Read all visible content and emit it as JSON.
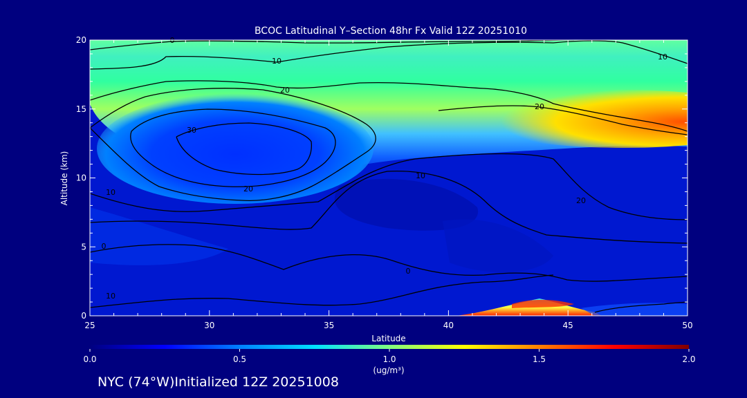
{
  "chart_data": {
    "type": "heatmap",
    "title": "BCOC Latitudinal Y–Section 48hr  Fx Valid 12Z 20251010",
    "xlabel": "Latitude",
    "ylabel": "Altitude (km)",
    "x_ticks": [
      "25",
      "30",
      "35",
      "40",
      "45",
      "50"
    ],
    "y_ticks": [
      "0",
      "5",
      "10",
      "15",
      "20"
    ],
    "xlim": [
      25,
      50
    ],
    "ylim": [
      0,
      20
    ],
    "colorbar": {
      "range": [
        0.0,
        2.0
      ],
      "tick_labels": [
        "0.0",
        "0.5",
        "1.0",
        "1.5",
        "2.0"
      ],
      "units": "(ug/m³)",
      "colors": [
        "#00007f",
        "#0000ff",
        "#0080ff",
        "#00e0ff",
        "#80ff80",
        "#ffff00",
        "#ff8000",
        "#ff0000",
        "#7f0000"
      ]
    },
    "field_regions": [
      {
        "name": "upper-layer",
        "lat_range": [
          25,
          50
        ],
        "alt_range": [
          13,
          20
        ],
        "approx_value": 0.85
      },
      {
        "name": "tropopause-maximum",
        "lat_range": [
          45,
          50
        ],
        "alt_range": [
          13,
          15
        ],
        "approx_value": 1.55
      },
      {
        "name": "surface-plume",
        "lat_range": [
          41,
          47
        ],
        "alt_range": [
          0,
          1
        ],
        "approx_value": 1.9
      },
      {
        "name": "mid-troposphere",
        "lat_range": [
          25,
          50
        ],
        "alt_range": [
          1,
          12
        ],
        "approx_value": 0.15
      }
    ],
    "contour_labels": [
      "0",
      "10",
      "20",
      "30",
      "20",
      "10",
      "10",
      "20",
      "20",
      "10",
      "0",
      "0",
      "10"
    ],
    "footer": "NYC (74°W)Initialized 12Z 20251008"
  }
}
